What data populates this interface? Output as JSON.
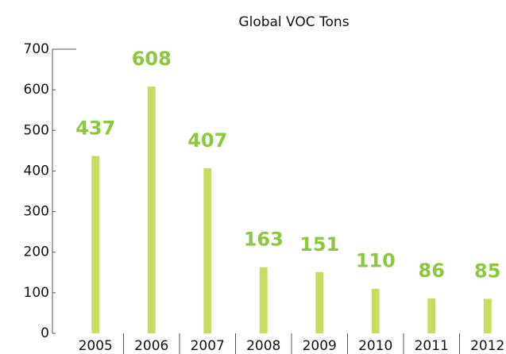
{
  "chart_data": {
    "type": "bar",
    "title": "Global VOC Tons",
    "categories": [
      "2005",
      "2006",
      "2007",
      "2008",
      "2009",
      "2010",
      "2011",
      "2012"
    ],
    "values": [
      437,
      608,
      407,
      163,
      151,
      110,
      86,
      85
    ],
    "color": "#c8dc64",
    "label_color": "#8dc63f",
    "ylim": [
      0,
      700
    ],
    "yticks": [
      0,
      100,
      200,
      300,
      400,
      500,
      600,
      700
    ],
    "grid": false
  }
}
